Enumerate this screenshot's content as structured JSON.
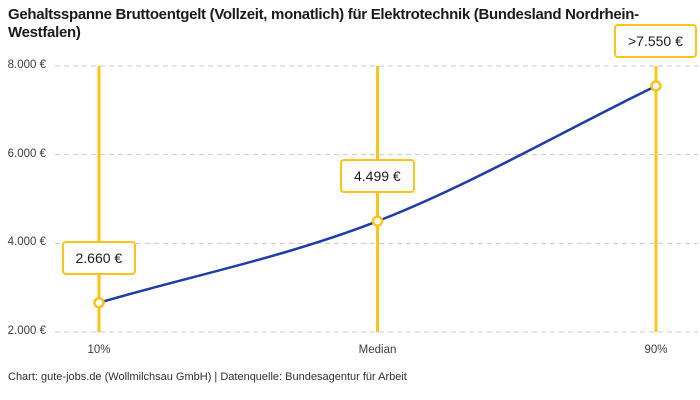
{
  "title": "Gehaltsspanne Bruttoentgelt (Vollzeit, monatlich) für Elektrotechnik (Bundesland Nordrhein-Westfalen)",
  "footer": "Chart: gute-jobs.de (Wollmilchsau GmbH) | Datenquelle: Bundesagentur für Arbeit",
  "colors": {
    "marker_yellow": "#fcc419",
    "curve_blue": "#1f3da8",
    "gridline_gray": "#c9c9c9",
    "title_text": "#1a1a1a",
    "axis_text": "#3d3d3d",
    "marker_fill": "#ffffff"
  },
  "chart_data": {
    "type": "line",
    "title": "Gehaltsspanne Bruttoentgelt (Vollzeit, monatlich) für Elektrotechnik (Bundesland Nordrhein-Westfalen)",
    "categories": [
      "10%",
      "Median",
      "90%"
    ],
    "values": [
      2660,
      4499,
      7550
    ],
    "points": [
      {
        "category": "10%",
        "value": 2660,
        "label": "2.660 €"
      },
      {
        "category": "Median",
        "value": 4499,
        "label": "4.499 €"
      },
      {
        "category": "90%",
        "value": 7550,
        "label": ">7.550 €"
      }
    ],
    "xlabel": "",
    "ylabel": "",
    "ylim": [
      2000,
      8000
    ],
    "y_ticks": [
      {
        "value": 2000,
        "label": "2.000 €"
      },
      {
        "value": 4000,
        "label": "4.000 €"
      },
      {
        "value": 6000,
        "label": "6.000 €"
      },
      {
        "value": 8000,
        "label": "8.000 €"
      }
    ],
    "grid": "horizontal dashed gridlines on",
    "legend": "none",
    "annotations": "each percentile has a vertical yellow marker line, an open-circle data point and a yellow-bordered value box above the point"
  }
}
